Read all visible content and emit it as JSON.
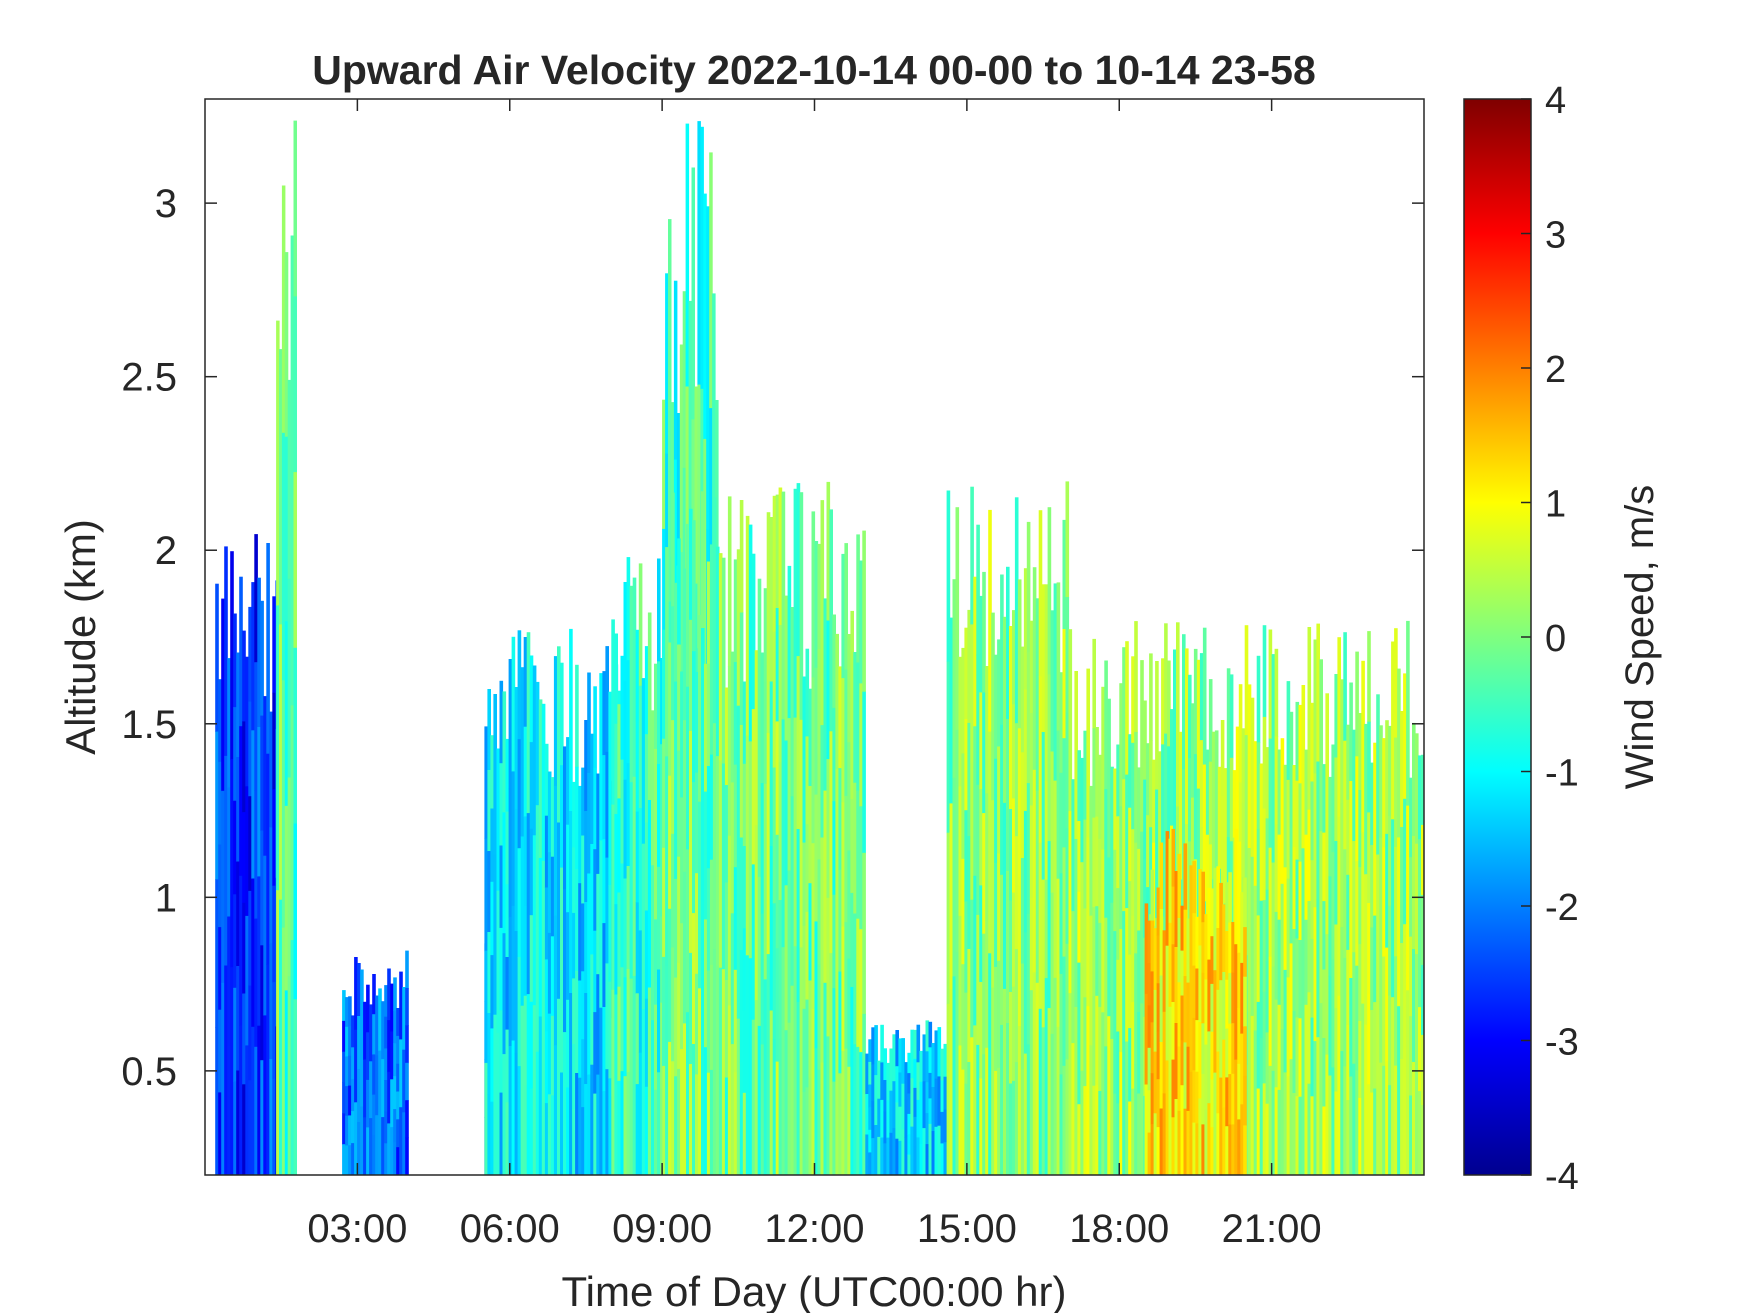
{
  "chart_data": {
    "type": "heatmap",
    "title": "Upward Air Velocity 2022-10-14 00-00 to 10-14 23-58",
    "xlabel": "Time of Day (UTC00:00 hr)",
    "ylabel": "Altitude (km)",
    "x_unit": "hours",
    "xlim": [
      0,
      24
    ],
    "ylim": [
      0.2,
      3.3
    ],
    "x_ticks": [
      {
        "value": 3,
        "label": "03:00"
      },
      {
        "value": 6,
        "label": "06:00"
      },
      {
        "value": 9,
        "label": "09:00"
      },
      {
        "value": 12,
        "label": "12:00"
      },
      {
        "value": 15,
        "label": "15:00"
      },
      {
        "value": 18,
        "label": "18:00"
      },
      {
        "value": 21,
        "label": "21:00"
      }
    ],
    "y_ticks": [
      {
        "value": 0.5,
        "label": "0.5"
      },
      {
        "value": 1,
        "label": "1"
      },
      {
        "value": 1.5,
        "label": "1.5"
      },
      {
        "value": 2,
        "label": "2"
      },
      {
        "value": 2.5,
        "label": "2.5"
      },
      {
        "value": 3,
        "label": "3"
      }
    ],
    "colorbar": {
      "label": "Wind Speed, m/s",
      "clim": [
        -4,
        4
      ],
      "colormap": "jet",
      "ticks": [
        {
          "value": 4,
          "label": "4"
        },
        {
          "value": 3,
          "label": "3"
        },
        {
          "value": 2,
          "label": "2"
        },
        {
          "value": 1,
          "label": "1"
        },
        {
          "value": 0,
          "label": "0"
        },
        {
          "value": -1,
          "label": "-1"
        },
        {
          "value": -2,
          "label": "-2"
        },
        {
          "value": -3,
          "label": "-3"
        },
        {
          "value": -4,
          "label": "-4"
        }
      ]
    },
    "grid": false,
    "data_regions": [
      {
        "t0": 0.2,
        "t1": 1.8,
        "alt_top": 2.1,
        "mean_w": -2.6,
        "note": "strong downdraft column"
      },
      {
        "t0": 1.4,
        "t1": 1.8,
        "alt_top": 3.3,
        "mean_w": -0.3
      },
      {
        "t0": 2.7,
        "t1": 4.0,
        "alt_top": 0.85,
        "mean_w": -2.2
      },
      {
        "t0": 5.5,
        "t1": 6.8,
        "alt_top": 0.9,
        "mean_w": -2.4
      },
      {
        "t0": 5.5,
        "t1": 8.3,
        "alt_top": 1.8,
        "mean_w": -1.2
      },
      {
        "t0": 8.0,
        "t1": 9.2,
        "alt_top": 2.1,
        "mean_w": -0.6
      },
      {
        "t0": 9.0,
        "t1": 10.1,
        "alt_top": 3.3,
        "mean_w": -0.5
      },
      {
        "t0": 9.0,
        "t1": 13.0,
        "alt_top": 2.2,
        "mean_w": -0.1
      },
      {
        "t0": 13.0,
        "t1": 14.6,
        "alt_top": 0.65,
        "mean_w": -1.3
      },
      {
        "t0": 14.6,
        "t1": 17.0,
        "alt_top": 2.2,
        "mean_w": 0.1
      },
      {
        "t0": 17.0,
        "t1": 24.0,
        "alt_top": 1.8,
        "mean_w": 0.2
      },
      {
        "t0": 18.5,
        "t1": 20.5,
        "alt_top": 1.2,
        "mean_w": 1.2,
        "note": "updraft streaks"
      }
    ]
  }
}
